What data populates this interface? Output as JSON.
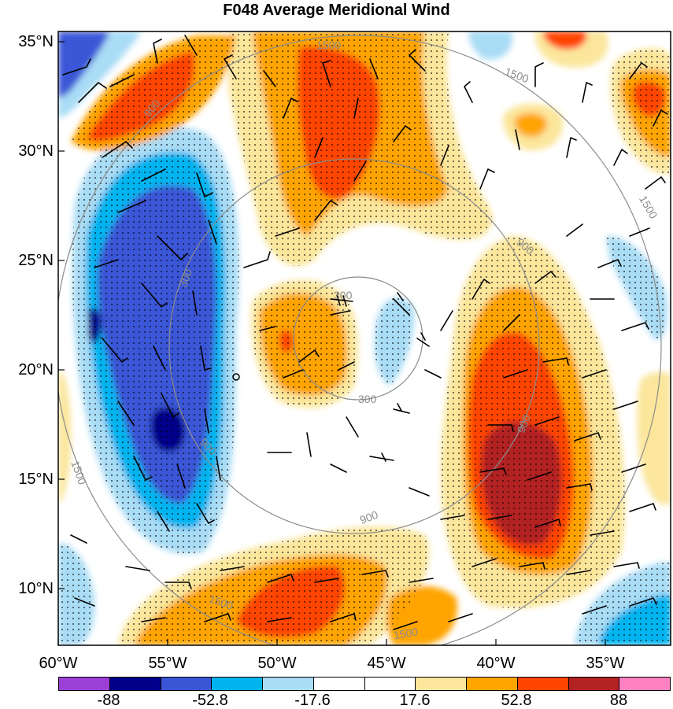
{
  "title": "F048 Average Meridional Wind",
  "map": {
    "lat_range": [
      7.7,
      35.7
    ],
    "lon_range": [
      -60,
      -32
    ],
    "lat_labels": [
      "35°N",
      "30°N",
      "25°N",
      "20°N",
      "15°N",
      "10°N"
    ],
    "lon_labels": [
      "60°W",
      "55°W",
      "50°W",
      "45°W",
      "40°W",
      "35°W"
    ],
    "height_contour_labels": [
      "300",
      "300",
      "300",
      "900",
      "900",
      "900",
      "900",
      "900",
      "1500",
      "1500",
      "1500",
      "1500",
      "1500",
      "1500"
    ],
    "contour_color": "#8c8c8c",
    "stipple_note": "dotted regions"
  },
  "colorbar": {
    "colors": [
      "#9b3fd6",
      "#00008b",
      "#3a56d6",
      "#00b4f0",
      "#a9dcf5",
      "#ffffff",
      "#ffffff",
      "#fbe69b",
      "#ffa400",
      "#ff4500",
      "#b22222",
      "#ff80c0"
    ],
    "labels": [
      "-88",
      "-52.8",
      "-17.6",
      "17.6",
      "52.8",
      "88"
    ]
  }
}
